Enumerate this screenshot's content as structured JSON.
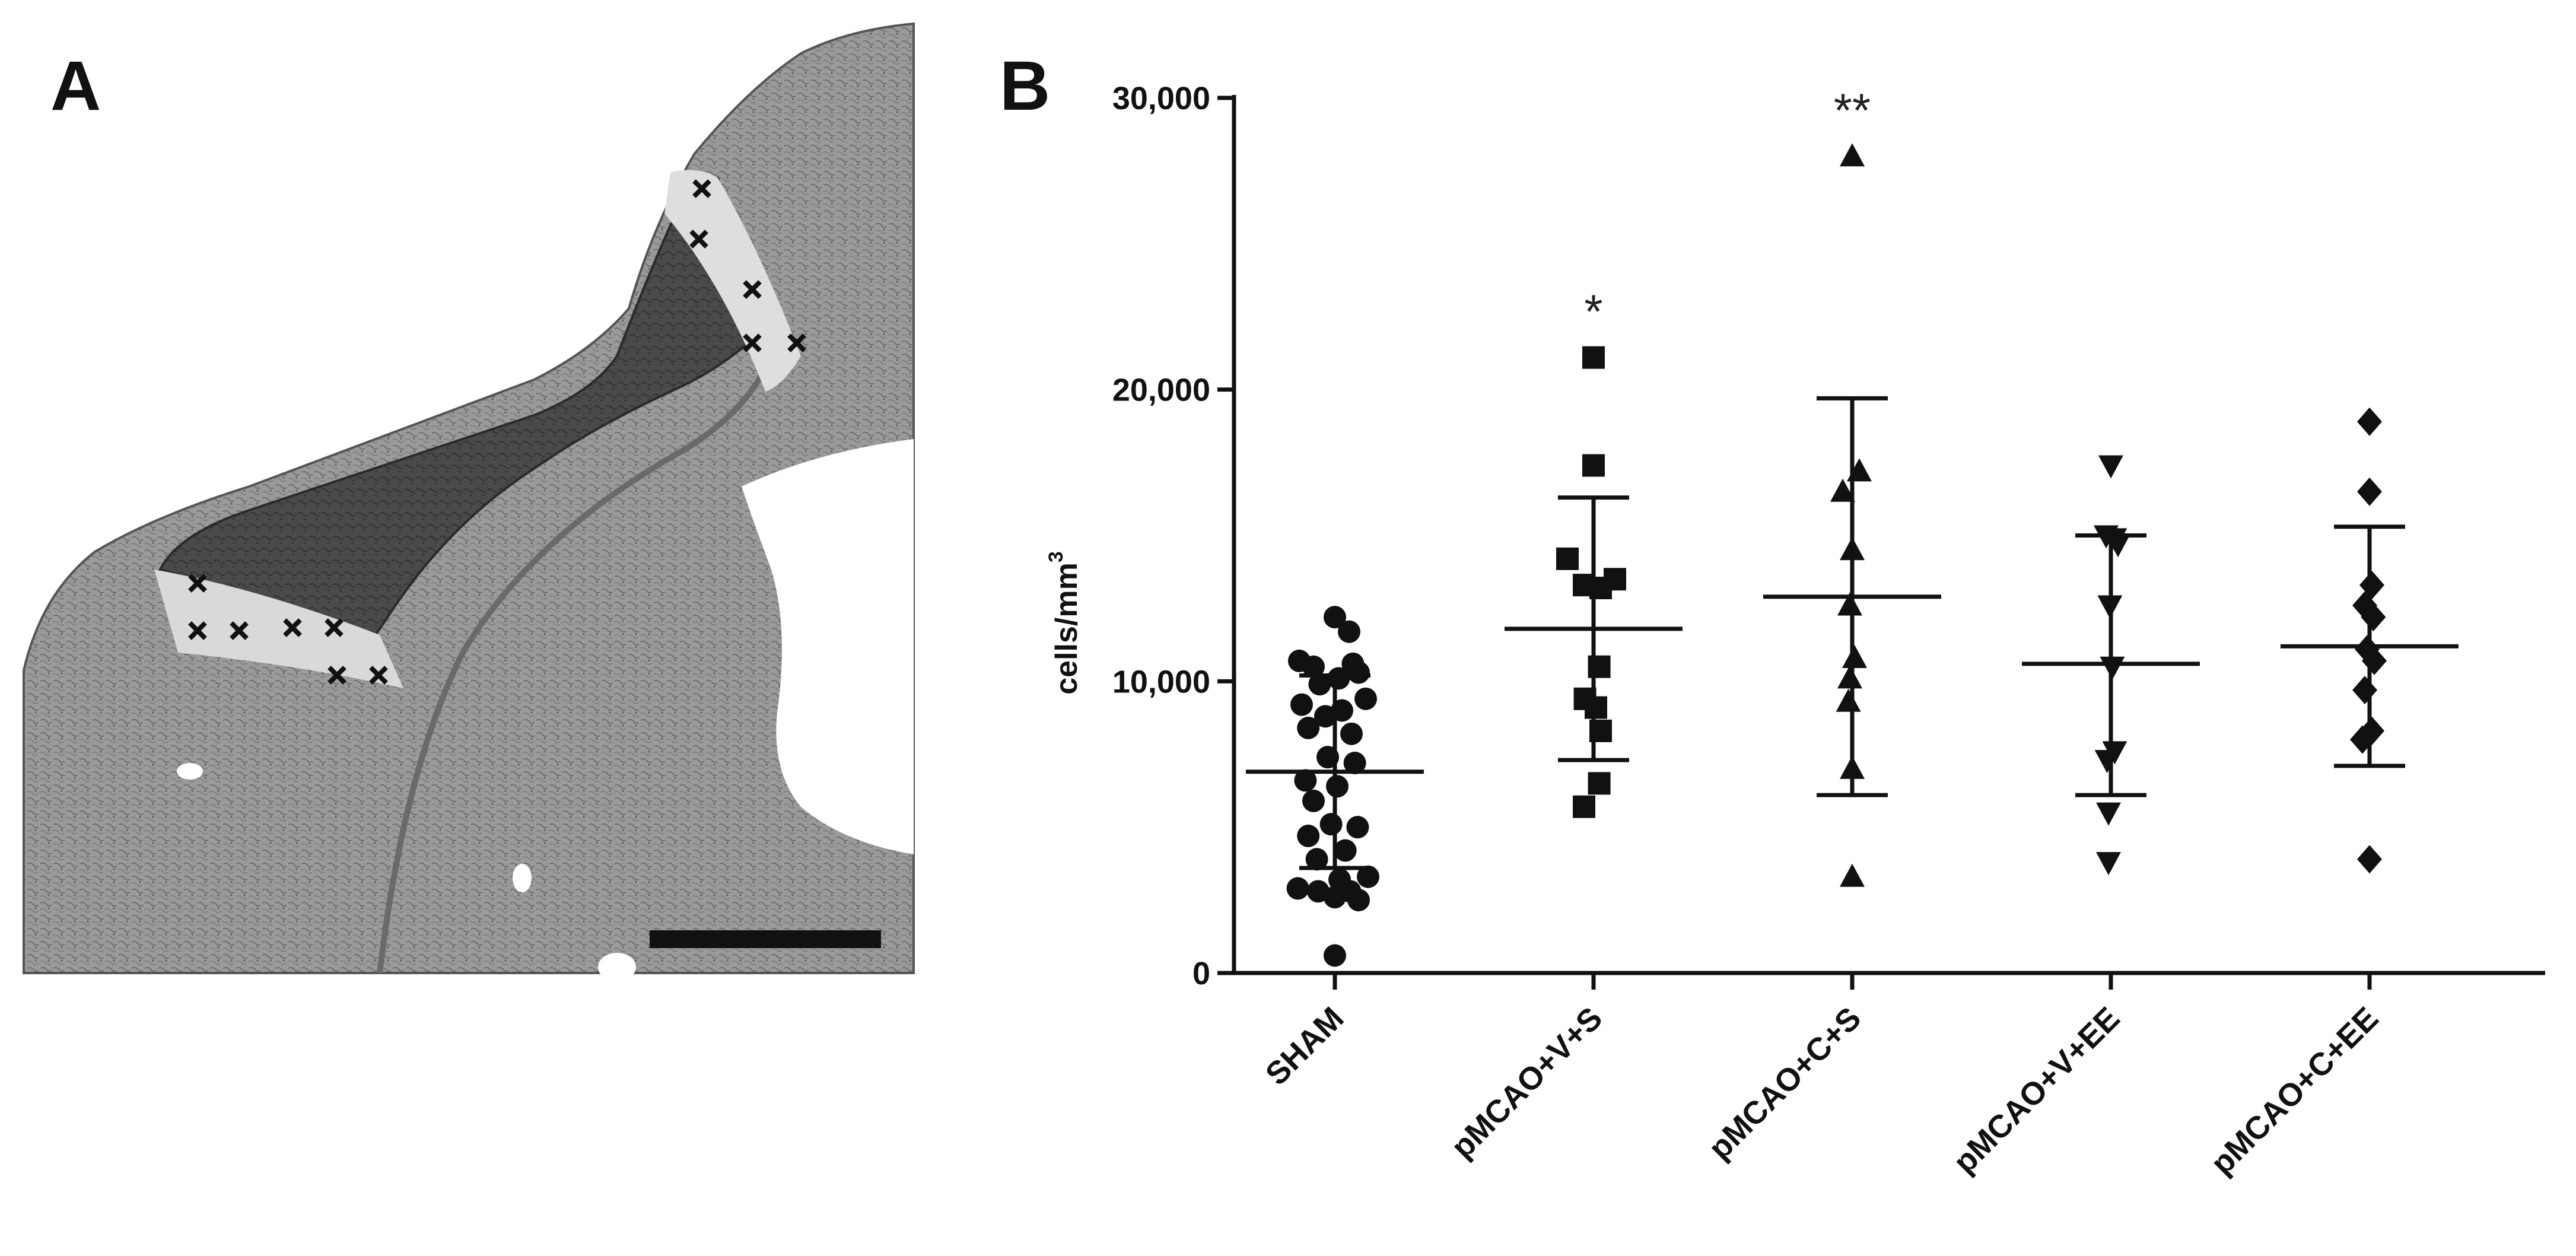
{
  "panel_a": {
    "letter": "A"
  },
  "chart_data": {
    "type": "scatter",
    "panel_letter": "B",
    "ylabel": "cells/mm",
    "ylabel_superscript": "3",
    "ylim": [
      0,
      30000
    ],
    "yticks": [
      0,
      10000,
      20000,
      30000
    ],
    "ytick_labels": [
      "0",
      "10,000",
      "20,000",
      "30,000"
    ],
    "categories": [
      "SHAM",
      "pMCAO+V+S",
      "pMCAO+C+S",
      "pMCAO+V+EE",
      "pMCAO+C+EE"
    ],
    "markers": [
      "circle",
      "square",
      "triangle-up",
      "triangle-down",
      "diamond"
    ],
    "series": [
      {
        "values": [
          12200,
          11700,
          10700,
          10600,
          10500,
          10300,
          10100,
          9900,
          9400,
          9200,
          9000,
          8800,
          8400,
          8200,
          7400,
          7200,
          6600,
          6400,
          5900,
          5100,
          5000,
          4700,
          4200,
          3900,
          3300,
          3200,
          2900,
          2800,
          2800,
          2600,
          2500,
          600
        ],
        "jitter": [
          0.0,
          0.3,
          -0.75,
          0.38,
          -0.45,
          0.5,
          0.08,
          -0.32,
          0.65,
          -0.7,
          0.15,
          -0.2,
          -0.56,
          0.35,
          -0.15,
          0.42,
          -0.62,
          0.05,
          -0.45,
          -0.08,
          0.48,
          -0.56,
          0.22,
          -0.38,
          0.7,
          0.1,
          -0.78,
          -0.35,
          0.32,
          0.0,
          0.5,
          0.0
        ],
        "mean": 6900,
        "sd_low": 3600,
        "sd_high": 10200,
        "significance": ""
      },
      {
        "values": [
          21100,
          17400,
          14200,
          13500,
          13300,
          13200,
          10500,
          9400,
          9100,
          8300,
          6500,
          5700
        ],
        "jitter": [
          0.0,
          0.0,
          -0.55,
          0.45,
          -0.2,
          0.15,
          0.12,
          -0.18,
          0.05,
          0.15,
          0.12,
          -0.2
        ],
        "mean": 11800,
        "sd_low": 7300,
        "sd_high": 16300,
        "significance": "*"
      },
      {
        "values": [
          28000,
          17200,
          16500,
          14500,
          12600,
          10800,
          10100,
          9300,
          7000,
          3300
        ],
        "jitter": [
          0.0,
          0.15,
          -0.2,
          0.0,
          -0.05,
          0.05,
          -0.05,
          -0.08,
          0.0,
          0.0
        ],
        "mean": 12900,
        "sd_low": 6100,
        "sd_high": 19700,
        "significance": "**"
      },
      {
        "values": [
          17400,
          15000,
          14900,
          14700,
          12600,
          10500,
          7600,
          7300,
          5500,
          3800
        ],
        "jitter": [
          0.0,
          -0.1,
          0.08,
          0.15,
          -0.02,
          0.03,
          0.08,
          -0.08,
          -0.05,
          -0.05
        ],
        "mean": 10600,
        "sd_low": 6100,
        "sd_high": 15000,
        "significance": ""
      },
      {
        "values": [
          18900,
          16500,
          13300,
          12600,
          12200,
          11100,
          10700,
          9700,
          8300,
          8000,
          3900
        ],
        "jitter": [
          0.0,
          0.0,
          0.05,
          -0.1,
          0.08,
          -0.05,
          0.1,
          -0.1,
          0.05,
          -0.15,
          0.0
        ],
        "mean": 11200,
        "sd_low": 7100,
        "sd_high": 15300,
        "significance": ""
      }
    ]
  }
}
